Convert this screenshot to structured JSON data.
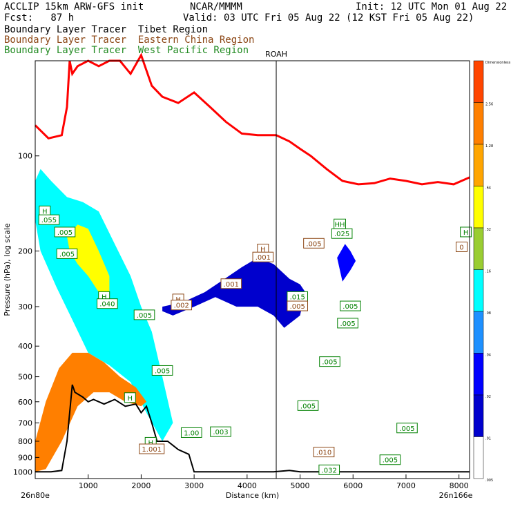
{
  "header": {
    "model": "ACCLIP 15km ARW-GFS init",
    "fcst": "Fcst:   87 h",
    "center": "NCAR/MMMM",
    "init": "Init: 12 UTC Mon 01 Aug 22",
    "valid": "Valid: 03 UTC Fri 05 Aug 22 (12 KST Fri 05 Aug 22)",
    "legend": [
      {
        "text": "Boundary Layer Tracer  Tibet Region",
        "color": "#000000"
      },
      {
        "text": "Boundary Layer Tracer  Eastern China Region",
        "color": "#8b4513"
      },
      {
        "text": "Boundary Layer Tracer  West Pacific Region",
        "color": "#228b22"
      }
    ]
  },
  "chart_data": {
    "type": "cross-section",
    "xlabel": "Distance (km)",
    "ylabel": "Pressure (hPa), log scale",
    "xlim": [
      0,
      8200
    ],
    "ylim": [
      1050,
      50
    ],
    "y_scale": "log",
    "x_ticks": [
      1000,
      2000,
      3000,
      4000,
      5000,
      6000,
      7000,
      8000
    ],
    "y_ticks": [
      100,
      200,
      300,
      400,
      500,
      600,
      700,
      800,
      900,
      1000
    ],
    "start_label": "26n80e",
    "end_label": "26n166e",
    "marker": {
      "label": "ROAH",
      "x": 4550
    },
    "colorbar": {
      "levels": [
        "Dimensionless",
        "2.56",
        "1.28",
        ".64",
        ".32",
        ".16",
        ".08",
        ".04",
        ".02",
        ".01",
        ".005"
      ],
      "colors": [
        "#ff4500",
        "#ff7f00",
        "#ffa500",
        "#ffff00",
        "#9acd32",
        "#00ffff",
        "#1e90ff",
        "#0000ff",
        "#0000cd",
        "#ffffff"
      ]
    },
    "tropopause": {
      "name": "tropopause",
      "color": "#ff0000",
      "x": [
        0,
        250,
        500,
        600,
        650,
        700,
        800,
        1000,
        1200,
        1400,
        1600,
        1800,
        2000,
        2200,
        2400,
        2700,
        3000,
        3300,
        3600,
        3900,
        4200,
        4550,
        4800,
        5000,
        5200,
        5500,
        5800,
        6100,
        6400,
        6700,
        7000,
        7300,
        7600,
        7900,
        8200
      ],
      "p": [
        80,
        88,
        86,
        70,
        50,
        55,
        52,
        50,
        52,
        50,
        50,
        55,
        48,
        60,
        65,
        68,
        63,
        70,
        78,
        85,
        86,
        86,
        90,
        95,
        100,
        110,
        120,
        123,
        122,
        118,
        120,
        123,
        121,
        123,
        117
      ]
    },
    "terrain": {
      "name": "surface",
      "color": "#000000",
      "x": [
        0,
        300,
        500,
        600,
        700,
        750,
        900,
        1000,
        1100,
        1300,
        1500,
        1700,
        1900,
        2000,
        2100,
        2200,
        2300,
        2500,
        2700,
        2900,
        3000,
        3500,
        4000,
        4500,
        4800,
        5000,
        6000,
        7000,
        8200
      ],
      "p": [
        1000,
        1000,
        990,
        800,
        530,
        560,
        580,
        600,
        590,
        610,
        590,
        620,
        610,
        650,
        620,
        700,
        800,
        800,
        850,
        880,
        1000,
        1000,
        1000,
        1000,
        990,
        1000,
        1000,
        1000,
        1000
      ]
    },
    "shaded_regions": [
      {
        "name": "tibet-plume",
        "fill": "#00ffff",
        "x": [
          0,
          100,
          300,
          600,
          900,
          1200,
          1500,
          1800,
          2000,
          2200,
          2400,
          2600,
          2400,
          2100,
          1800,
          1400,
          1000,
          700,
          400,
          100,
          0
        ],
        "p": [
          120,
          110,
          120,
          135,
          140,
          150,
          190,
          240,
          300,
          360,
          500,
          700,
          800,
          650,
          520,
          460,
          420,
          330,
          260,
          200,
          160
        ]
      },
      {
        "name": "mid-plume",
        "fill": "#0000cd",
        "x": [
          2400,
          2800,
          3200,
          3500,
          3900,
          4200,
          4500,
          4800,
          5000,
          5100,
          5000,
          4700,
          4500,
          4200,
          3800,
          3400,
          3000,
          2600,
          2400
        ],
        "p": [
          300,
          290,
          270,
          250,
          225,
          210,
          220,
          245,
          255,
          270,
          320,
          350,
          320,
          300,
          300,
          280,
          300,
          320,
          310
        ]
      },
      {
        "name": "west-pacific-core",
        "fill": "#0000ff",
        "x": [
          5700,
          5850,
          5950,
          6050,
          5950,
          5800
        ],
        "p": [
          210,
          190,
          200,
          215,
          230,
          250
        ]
      },
      {
        "name": "low-plume",
        "fill": "#ff7f00",
        "x": [
          0,
          200,
          450,
          700,
          1000,
          1300,
          1600,
          1900,
          2100,
          2000,
          1700,
          1400,
          1100,
          800,
          500,
          200,
          0
        ],
        "p": [
          800,
          600,
          470,
          420,
          420,
          450,
          500,
          540,
          600,
          620,
          600,
          560,
          560,
          620,
          800,
          980,
          1000
        ]
      },
      {
        "name": "yellow-core",
        "fill": "#ffff00",
        "x": [
          600,
          800,
          1000,
          1200,
          1400,
          1400,
          1200,
          1000,
          800,
          650
        ],
        "p": [
          180,
          165,
          170,
          200,
          240,
          280,
          270,
          240,
          220,
          200
        ]
      }
    ],
    "annotations": [
      {
        "text": "H",
        "x": 180,
        "p": 150,
        "color": "#008000"
      },
      {
        "text": ".055",
        "x": 260,
        "p": 160,
        "color": "#008000"
      },
      {
        "text": ".005",
        "x": 560,
        "p": 175,
        "color": "#008000"
      },
      {
        "text": ".005",
        "x": 600,
        "p": 205,
        "color": "#008000"
      },
      {
        "text": "H",
        "x": 1300,
        "p": 280,
        "color": "#008000"
      },
      {
        "text": ".040",
        "x": 1360,
        "p": 295,
        "color": "#008000"
      },
      {
        "text": ".005",
        "x": 2060,
        "p": 320,
        "color": "#008000"
      },
      {
        "text": "H",
        "x": 2700,
        "p": 285,
        "color": "#8b4513"
      },
      {
        "text": ".002",
        "x": 2760,
        "p": 298,
        "color": "#8b4513"
      },
      {
        "text": ".001",
        "x": 3700,
        "p": 255,
        "color": "#8b4513"
      },
      {
        "text": "H",
        "x": 4300,
        "p": 198,
        "color": "#8b4513"
      },
      {
        "text": ".001",
        "x": 4300,
        "p": 210,
        "color": "#8b4513"
      },
      {
        "text": ".005",
        "x": 5260,
        "p": 190,
        "color": "#8b4513"
      },
      {
        "text": ".015",
        "x": 4950,
        "p": 280,
        "color": "#008000"
      },
      {
        "text": ".005",
        "x": 4950,
        "p": 300,
        "color": "#8b4513"
      },
      {
        "text": "HH",
        "x": 5750,
        "p": 165,
        "color": "#008000"
      },
      {
        "text": ".025",
        "x": 5790,
        "p": 177,
        "color": "#008000"
      },
      {
        "text": ".005",
        "x": 5950,
        "p": 300,
        "color": "#008000"
      },
      {
        "text": ".005",
        "x": 5900,
        "p": 340,
        "color": "#008000"
      },
      {
        "text": ".005",
        "x": 5560,
        "p": 450,
        "color": "#008000"
      },
      {
        "text": ".005",
        "x": 2400,
        "p": 480,
        "color": "#008000"
      },
      {
        "text": "H",
        "x": 1790,
        "p": 585,
        "color": "#008000"
      },
      {
        "text": ".005",
        "x": 5150,
        "p": 620,
        "color": "#008000"
      },
      {
        "text": ".005",
        "x": 7020,
        "p": 730,
        "color": "#008000"
      },
      {
        "text": "1.00",
        "x": 2950,
        "p": 755,
        "color": "#008000"
      },
      {
        "text": ".003",
        "x": 3500,
        "p": 750,
        "color": "#008000"
      },
      {
        "text": "H",
        "x": 2180,
        "p": 810,
        "color": "#008000"
      },
      {
        "text": "1.001",
        "x": 2200,
        "p": 850,
        "color": "#8b4513"
      },
      {
        "text": ".010",
        "x": 5450,
        "p": 870,
        "color": "#8b4513"
      },
      {
        "text": ".032",
        "x": 5550,
        "p": 990,
        "color": "#008000"
      },
      {
        "text": ".005",
        "x": 6700,
        "p": 920,
        "color": "#008000"
      },
      {
        "text": "H",
        "x": 8130,
        "p": 175,
        "color": "#008000"
      },
      {
        "text": "0",
        "x": 8050,
        "p": 195,
        "color": "#8b4513"
      }
    ]
  }
}
